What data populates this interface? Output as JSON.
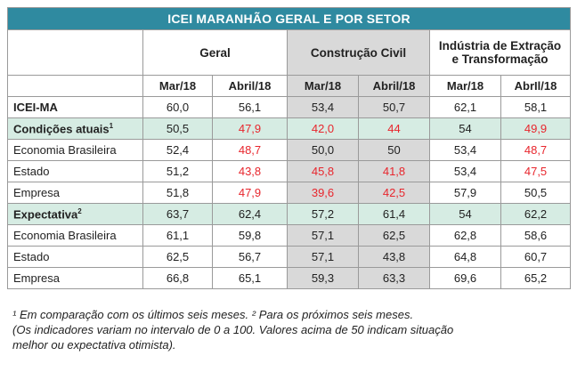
{
  "table": {
    "title": "ICEI MARANHÃO GERAL E POR SETOR",
    "groups": [
      "Geral",
      "Construção Civil",
      "Indústria de Extração e Transformação"
    ],
    "subheaders": [
      "Mar/18",
      "Abril/18",
      "Mar/18",
      "Abril/18",
      "Mar/18",
      "AbrIl/18"
    ],
    "rows": [
      {
        "label": "ICEI-MA",
        "sup": "",
        "values": [
          "60,0",
          "56,1",
          "53,4",
          "50,7",
          "62,1",
          "58,1"
        ],
        "red": [
          false,
          false,
          false,
          false,
          false,
          false
        ],
        "highlight": false,
        "bold": true
      },
      {
        "label": "Condições atuais",
        "sup": "1",
        "values": [
          "50,5",
          "47,9",
          "42,0",
          "44",
          "54",
          "49,9"
        ],
        "red": [
          false,
          true,
          true,
          true,
          false,
          true
        ],
        "highlight": true,
        "bold": true
      },
      {
        "label": "Economia Brasileira",
        "sup": "",
        "values": [
          "52,4",
          "48,7",
          "50,0",
          "50",
          "53,4",
          "48,7"
        ],
        "red": [
          false,
          true,
          false,
          false,
          false,
          true
        ],
        "highlight": false,
        "bold": false
      },
      {
        "label": "Estado",
        "sup": "",
        "values": [
          "51,2",
          "43,8",
          "45,8",
          "41,8",
          "53,4",
          "47,5"
        ],
        "red": [
          false,
          true,
          true,
          true,
          false,
          true
        ],
        "highlight": false,
        "bold": false
      },
      {
        "label": "Empresa",
        "sup": "",
        "values": [
          "51,8",
          "47,9",
          "39,6",
          "42,5",
          "57,9",
          "50,5"
        ],
        "red": [
          false,
          true,
          true,
          true,
          false,
          false
        ],
        "highlight": false,
        "bold": false
      },
      {
        "label": "Expectativa",
        "sup": "2",
        "values": [
          "63,7",
          "62,4",
          "57,2",
          "61,4",
          "54",
          "62,2"
        ],
        "red": [
          false,
          false,
          false,
          false,
          false,
          false
        ],
        "highlight": true,
        "bold": true
      },
      {
        "label": "Economia Brasileira",
        "sup": "",
        "values": [
          "61,1",
          "59,8",
          "57,1",
          "62,5",
          "62,8",
          "58,6"
        ],
        "red": [
          false,
          false,
          false,
          false,
          false,
          false
        ],
        "highlight": false,
        "bold": false
      },
      {
        "label": "Estado",
        "sup": "",
        "values": [
          "62,5",
          "56,7",
          "57,1",
          "43,8",
          "64,8",
          "60,7"
        ],
        "red": [
          false,
          false,
          false,
          false,
          false,
          false
        ],
        "highlight": false,
        "bold": false
      },
      {
        "label": "Empresa",
        "sup": "",
        "values": [
          "66,8",
          "65,1",
          "59,3",
          "63,3",
          "69,6",
          "65,2"
        ],
        "red": [
          false,
          false,
          false,
          false,
          false,
          false
        ],
        "highlight": false,
        "bold": false
      }
    ],
    "colors": {
      "title_bg": "#2f8aa0",
      "highlight_bg": "#d6ece3",
      "shade_bg": "#d9d9d9",
      "red_text": "#e8262d"
    }
  },
  "notes": {
    "line1": "¹ Em comparação com os últimos seis meses. ² Para os próximos seis meses.",
    "line2": "(Os indicadores variam no intervalo de 0 a 100. Valores acima de 50 indicam situação",
    "line3": "melhor ou expectativa otimista)."
  }
}
